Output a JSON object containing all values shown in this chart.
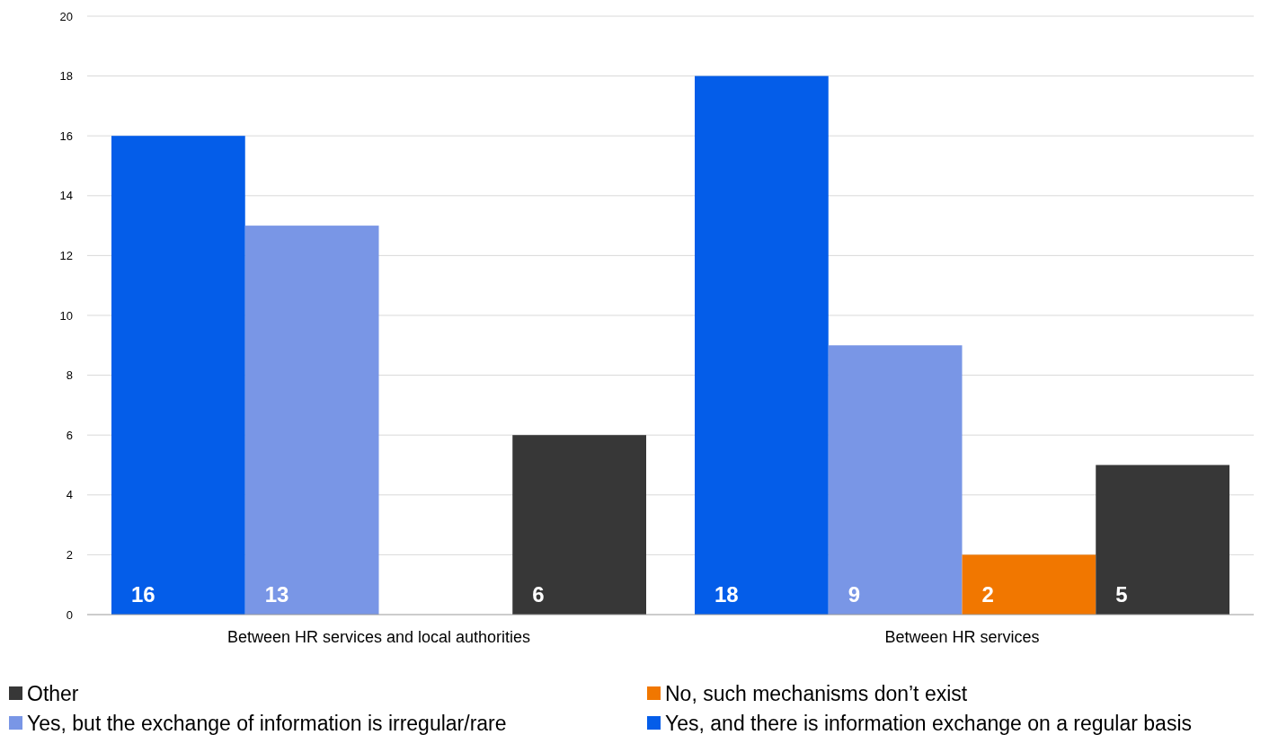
{
  "chart_data": {
    "type": "bar",
    "categories": [
      "Between HR services and local authorities",
      "Between HR services"
    ],
    "series": [
      {
        "name": "Yes, and there is information exchange on a regular basis",
        "color": "#045de9",
        "values": [
          16,
          18
        ]
      },
      {
        "name": "Yes, but the exchange of information is irregular/rare",
        "color": "#7996e6",
        "values": [
          13,
          9
        ]
      },
      {
        "name": "No, such mechanisms don’t exist",
        "color": "#f17700",
        "values": [
          null,
          2
        ]
      },
      {
        "name": "Other",
        "color": "#373737",
        "values": [
          6,
          5
        ]
      }
    ],
    "ylim": [
      0,
      20
    ],
    "yticks": [
      0,
      2,
      4,
      6,
      8,
      10,
      12,
      14,
      16,
      18,
      20
    ],
    "grid": "y",
    "legend": "bottom",
    "data_labels": true
  }
}
